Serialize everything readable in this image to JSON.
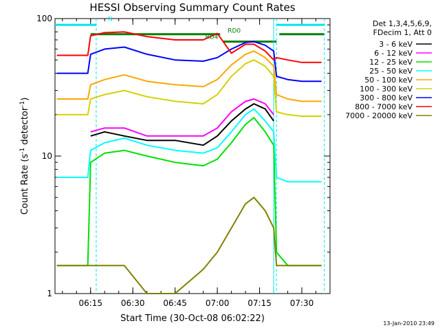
{
  "chart_data": {
    "type": "line",
    "title": "HESSI Observing Summary Count Rates",
    "xlabel": "Start Time (30-Oct-08 06:02:22)",
    "ylabel_main": "Count Rate (s",
    "ylabel_sup1": "-1",
    "ylabel_mid": " detector",
    "ylabel_sup2": "-1",
    "ylabel_end": ")",
    "yscale": "log",
    "ylim": [
      1,
      100
    ],
    "xlim": [
      "06:02:22",
      "07:40:00"
    ],
    "x_ticks": [
      "06:15",
      "06:30",
      "06:45",
      "07:00",
      "07:15",
      "07:30"
    ],
    "y_ticks": [
      "1",
      "10",
      "100"
    ],
    "legend": {
      "header1": "Det 1,3,4,5,6,9,",
      "header2": "FDecim 1, Att 0",
      "placement": "right"
    },
    "annotations": [
      {
        "text": "N",
        "time": "06:22",
        "y": 96,
        "color": "#00e5ee"
      },
      {
        "text": "RD0",
        "time": "07:06",
        "y": 79,
        "color": "#008000"
      },
      {
        "text": "RD4",
        "time": "06:58",
        "y": 71,
        "color": "#008000"
      }
    ],
    "flag_bars": [
      {
        "name": "N",
        "color": "#00e5ee",
        "y": 90,
        "segments": [
          [
            "06:02:22",
            "06:17"
          ],
          [
            "07:21",
            "07:38"
          ]
        ]
      },
      {
        "name": "RD0",
        "color": "#008000",
        "y": 77,
        "segments": [
          [
            "06:15",
            "07:01"
          ],
          [
            "07:22",
            "07:38"
          ]
        ]
      },
      {
        "name": "RD4",
        "color": "#008000",
        "y": 68,
        "segments": [
          [
            "07:02",
            "07:21"
          ]
        ]
      }
    ],
    "vertical_markers": [
      {
        "time": "06:17",
        "color": "#00e5ee",
        "dashed": true
      },
      {
        "time": "07:20",
        "color": "#00e5ee",
        "dashed": false
      },
      {
        "time": "07:21",
        "color": "#00e5ee",
        "dashed": true
      },
      {
        "time": "07:38",
        "color": "#00e5ee",
        "dashed": true
      }
    ],
    "x_times": [
      "06:03",
      "06:10",
      "06:14",
      "06:15",
      "06:20",
      "06:27",
      "06:35",
      "06:45",
      "06:55",
      "07:00",
      "07:05",
      "07:10",
      "07:13",
      "07:17",
      "07:20",
      "07:21",
      "07:25",
      "07:30",
      "07:37"
    ],
    "series": [
      {
        "name": "3 - 6 keV",
        "color": "#000000",
        "values": [
          null,
          null,
          null,
          14,
          15,
          14,
          13,
          13,
          12,
          14,
          18,
          22,
          24,
          22,
          18,
          null,
          null,
          null,
          null
        ]
      },
      {
        "name": "6 - 12 keV",
        "color": "#ff00ff",
        "values": [
          null,
          null,
          null,
          15,
          16,
          16,
          14,
          14,
          14,
          16,
          21,
          25,
          26,
          24,
          20,
          null,
          null,
          null,
          null
        ]
      },
      {
        "name": "12 - 25 keV",
        "color": "#00e000",
        "values": [
          1.6,
          1.6,
          1.6,
          9,
          10.5,
          11,
          10,
          9,
          8.5,
          9.5,
          12.5,
          17,
          19,
          15,
          12,
          2,
          1.6,
          1.6,
          1.6
        ]
      },
      {
        "name": "25 - 50 keV",
        "color": "#00ffff",
        "values": [
          7,
          7,
          7,
          11,
          12.5,
          13.5,
          12,
          11,
          10.5,
          11.5,
          15,
          20,
          22,
          18,
          15,
          7,
          6.5,
          6.5,
          6.5
        ]
      },
      {
        "name": "50 - 100 keV",
        "color": "#ffa500",
        "values": [
          26,
          26,
          26,
          33,
          36,
          39,
          35,
          33,
          32,
          36,
          46,
          55,
          58,
          52,
          45,
          28,
          26,
          25,
          25
        ]
      },
      {
        "name": "100 - 300 keV",
        "color": "#d2d200",
        "values": [
          20,
          20,
          20,
          26,
          28,
          30,
          27,
          25,
          24,
          28,
          38,
          47,
          50,
          45,
          38,
          21,
          20,
          19.5,
          19.5
        ]
      },
      {
        "name": "300 - 800 keV",
        "color": "#0000ff",
        "values": [
          40,
          40,
          40,
          55,
          60,
          62,
          55,
          50,
          49,
          52,
          60,
          67,
          68,
          64,
          58,
          38,
          36,
          35,
          35
        ]
      },
      {
        "name": "800 - 7000 keV",
        "color": "#ff0000",
        "values": [
          54,
          54,
          54,
          75,
          79,
          80,
          74,
          70,
          70,
          78,
          56,
          65,
          65,
          58,
          50,
          52,
          50,
          48,
          48
        ]
      },
      {
        "name": "7000 - 20000 keV",
        "color": "#808000",
        "values": [
          1.6,
          1.6,
          1.6,
          1.6,
          1.6,
          1.6,
          1,
          1,
          1.5,
          2,
          3,
          4.5,
          5,
          4,
          3,
          1.6,
          1.6,
          1.6,
          1.6
        ]
      }
    ]
  },
  "footer": {
    "timestamp": "13-Jan-2010 23:49"
  }
}
